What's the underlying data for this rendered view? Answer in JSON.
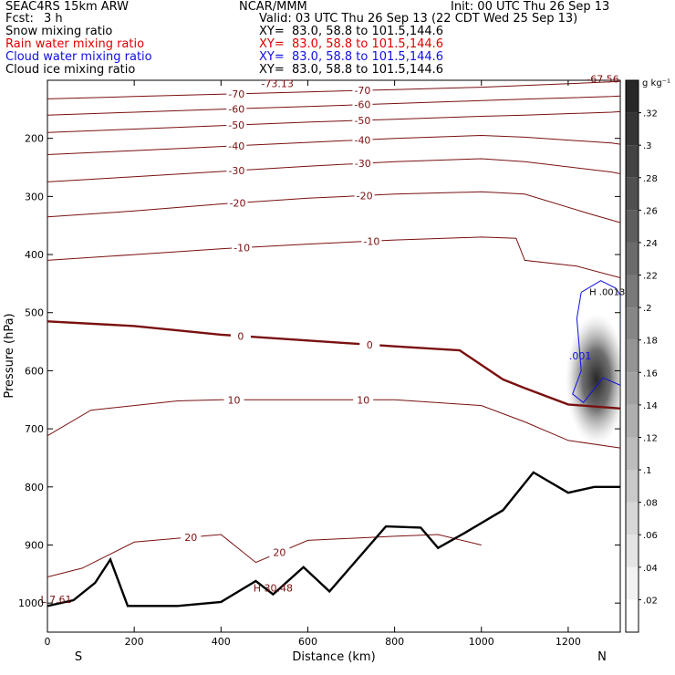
{
  "header": {
    "model": "SEAC4RS 15km ARW",
    "org": "NCAR/MMM",
    "init": "Init: 00 UTC Thu 26 Sep 13",
    "fcst_label": "Fcst:",
    "fcst_value": "3 h",
    "valid": "Valid: 03 UTC Thu 26 Sep 13 (22 CDT Wed 25 Sep 13)"
  },
  "fields": [
    {
      "name": "Snow mixing ratio",
      "xy": "XY=  83.0, 58.8 to 101.5,144.6",
      "color": "#000000"
    },
    {
      "name": "Rain water mixing ratio",
      "xy": "XY=  83.0, 58.8 to 101.5,144.6",
      "color": "#e00000"
    },
    {
      "name": "Cloud water mixing ratio",
      "xy": "XY=  83.0, 58.8 to 101.5,144.6",
      "color": "#1010e0"
    },
    {
      "name": "Cloud ice mixing ratio",
      "xy": "XY=  83.0, 58.8 to 101.5,144.6",
      "color": "#000000"
    }
  ],
  "colorbar": {
    "unit": "g kg⁻¹",
    "ticks": [
      ".02",
      ".04",
      ".06",
      ".08",
      ".1",
      ".12",
      ".14",
      ".16",
      ".18",
      ".2",
      ".22",
      ".24",
      ".26",
      ".28",
      ".3",
      ".32"
    ],
    "tick_values": [
      0.02,
      0.04,
      0.06,
      0.08,
      0.1,
      0.12,
      0.14,
      0.16,
      0.18,
      0.2,
      0.22,
      0.24,
      0.26,
      0.28,
      0.3,
      0.32
    ],
    "range": [
      0,
      0.34
    ]
  },
  "chart_data": {
    "type": "cross-section contour",
    "xlabel": "Distance (km)",
    "ylabel": "Pressure (hPa)",
    "xlim": [
      0,
      1320
    ],
    "ylim": [
      1050,
      100
    ],
    "x_ticks": [
      0,
      200,
      400,
      600,
      800,
      1000,
      1200
    ],
    "y_ticks": [
      200,
      300,
      400,
      500,
      600,
      700,
      800,
      900,
      1000
    ],
    "end_labels": {
      "left": "S",
      "right": "N"
    },
    "contour_color": "#7a1010",
    "temperature_contours": [
      {
        "label": "-70",
        "values": [
          [
            0,
            132
          ],
          [
            200,
            128
          ],
          [
            400,
            124
          ],
          [
            600,
            120
          ],
          [
            800,
            116
          ],
          [
            1000,
            112
          ],
          [
            1200,
            106
          ],
          [
            1320,
            102
          ]
        ]
      },
      {
        "label": "-60",
        "values": [
          [
            0,
            160
          ],
          [
            200,
            155
          ],
          [
            400,
            150
          ],
          [
            600,
            145
          ],
          [
            800,
            140
          ],
          [
            1000,
            135
          ],
          [
            1120,
            132
          ],
          [
            1300,
            128
          ],
          [
            1320,
            127
          ]
        ]
      },
      {
        "label": "-50",
        "values": [
          [
            0,
            190
          ],
          [
            200,
            184
          ],
          [
            400,
            178
          ],
          [
            600,
            172
          ],
          [
            800,
            167
          ],
          [
            1000,
            162
          ],
          [
            1100,
            160
          ],
          [
            1300,
            155
          ],
          [
            1320,
            154
          ]
        ]
      },
      {
        "label": "-40",
        "values": [
          [
            0,
            228
          ],
          [
            200,
            221
          ],
          [
            400,
            214
          ],
          [
            600,
            207
          ],
          [
            800,
            200
          ],
          [
            1000,
            195
          ],
          [
            1100,
            198
          ],
          [
            1300,
            208
          ],
          [
            1320,
            210
          ]
        ]
      },
      {
        "label": "-30",
        "values": [
          [
            0,
            275
          ],
          [
            200,
            266
          ],
          [
            400,
            257
          ],
          [
            600,
            248
          ],
          [
            800,
            240
          ],
          [
            1000,
            235
          ],
          [
            1100,
            240
          ],
          [
            1300,
            258
          ],
          [
            1320,
            261
          ]
        ]
      },
      {
        "label": "-20",
        "values": [
          [
            0,
            335
          ],
          [
            200,
            325
          ],
          [
            400,
            313
          ],
          [
            600,
            303
          ],
          [
            800,
            296
          ],
          [
            1000,
            292
          ],
          [
            1100,
            296
          ],
          [
            1250,
            330
          ],
          [
            1320,
            345
          ]
        ]
      },
      {
        "label": "-10",
        "values": [
          [
            0,
            410
          ],
          [
            200,
            400
          ],
          [
            400,
            390
          ],
          [
            600,
            382
          ],
          [
            800,
            375
          ],
          [
            1000,
            370
          ],
          [
            1080,
            372
          ],
          [
            1100,
            410
          ],
          [
            1220,
            420
          ],
          [
            1320,
            440
          ]
        ]
      },
      {
        "label": "0",
        "values": [
          [
            0,
            515
          ],
          [
            200,
            523
          ],
          [
            400,
            538
          ],
          [
            600,
            548
          ],
          [
            800,
            558
          ],
          [
            950,
            565
          ],
          [
            1050,
            615
          ],
          [
            1100,
            630
          ],
          [
            1200,
            658
          ],
          [
            1320,
            665
          ]
        ]
      },
      {
        "label": "10",
        "values": [
          [
            0,
            712
          ],
          [
            100,
            668
          ],
          [
            300,
            652
          ],
          [
            400,
            650
          ],
          [
            600,
            650
          ],
          [
            800,
            650
          ],
          [
            1000,
            660
          ],
          [
            1100,
            688
          ],
          [
            1200,
            720
          ],
          [
            1320,
            733
          ]
        ]
      },
      {
        "label": "20",
        "values": [
          [
            0,
            955
          ],
          [
            80,
            940
          ],
          [
            200,
            895
          ],
          [
            400,
            882
          ],
          [
            480,
            930
          ],
          [
            600,
            892
          ],
          [
            800,
            885
          ],
          [
            900,
            882
          ],
          [
            1000,
            900
          ]
        ]
      }
    ],
    "temperature_annotations": [
      {
        "label": "-73.13",
        "x": 530,
        "p": 112
      },
      {
        "label": "-67.56",
        "x": 1280,
        "p": 104
      },
      {
        "label": "L 7.61",
        "x": 20,
        "p": 1000
      },
      {
        "label": "H 30.48",
        "x": 520,
        "p": 980
      }
    ],
    "cloud_water_contour": {
      "label": ".001",
      "values": [
        [
          1230,
          465
        ],
        [
          1275,
          445
        ],
        [
          1310,
          458
        ],
        [
          1320,
          470
        ],
        [
          1320,
          625
        ],
        [
          1280,
          612
        ],
        [
          1235,
          655
        ],
        [
          1210,
          640
        ],
        [
          1230,
          600
        ],
        [
          1220,
          510
        ],
        [
          1230,
          465
        ]
      ]
    },
    "cloud_water_annotation": {
      "label": "H .0013",
      "x": 1290,
      "p": 470
    },
    "rain_water_max": {
      "x": 1265,
      "p": 615,
      "value": 0.32
    },
    "terrain": {
      "values": [
        [
          0,
          1005
        ],
        [
          60,
          995
        ],
        [
          110,
          965
        ],
        [
          145,
          925
        ],
        [
          185,
          1005
        ],
        [
          300,
          1005
        ],
        [
          400,
          998
        ],
        [
          480,
          962
        ],
        [
          520,
          985
        ],
        [
          590,
          938
        ],
        [
          650,
          980
        ],
        [
          780,
          868
        ],
        [
          860,
          870
        ],
        [
          900,
          905
        ],
        [
          960,
          880
        ],
        [
          1050,
          840
        ],
        [
          1120,
          775
        ],
        [
          1200,
          810
        ],
        [
          1260,
          800
        ],
        [
          1320,
          800
        ]
      ]
    }
  }
}
